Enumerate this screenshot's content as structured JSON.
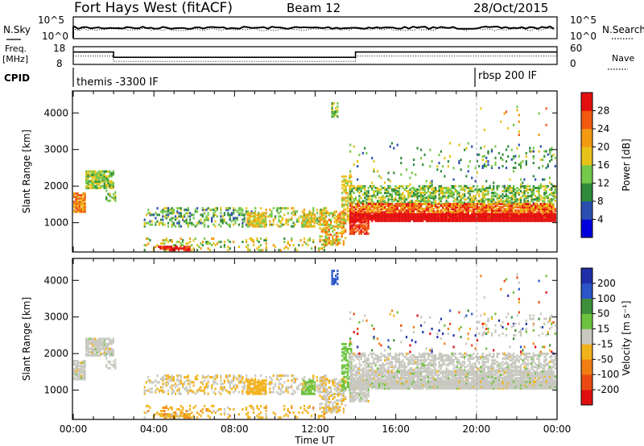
{
  "header": {
    "station": "Fort Hays West (fitACF)",
    "beam": "Beam 12",
    "date": "28/Oct/2015"
  },
  "top_panels": {
    "nsky_label": "N.Sky",
    "nsearch_label": "N.Search",
    "nsky_ticks": [
      "10^5",
      "10^0"
    ],
    "nsearch_ticks": [
      "10^5",
      "10^0"
    ],
    "freq_label": "Freq.",
    "freq_unit": "[MHz]",
    "freq_ticks": [
      "18",
      "8"
    ],
    "nave_label": "Nave",
    "nave_ticks": [
      "60",
      "0"
    ],
    "cpid_label": "CPID",
    "cpid_segments": [
      {
        "start": 0,
        "label": "themis -3300 IF"
      },
      {
        "start": 19.9,
        "label": "rbsp 200 IF"
      }
    ],
    "freq_steps": [
      {
        "t0": 0,
        "t1": 2,
        "mhz": 15
      },
      {
        "t0": 2,
        "t1": 14,
        "mhz": 12
      },
      {
        "t0": 14,
        "t1": 24,
        "mhz": 15
      }
    ]
  },
  "chart_data": [
    {
      "type": "heatmap",
      "title": "Power",
      "ylabel": "Slant Range [km]",
      "xlabel": "Time UT",
      "xlim": [
        0,
        24
      ],
      "ylim": [
        200,
        4600
      ],
      "yticks": [
        1000,
        2000,
        3000,
        4000
      ],
      "colorbar_label": "Power [dB]",
      "colorbar_ticks": [
        "4",
        "8",
        "12",
        "16",
        "20",
        "24",
        "28"
      ],
      "colors": [
        "#0000dd",
        "#2a4fb0",
        "#2f8a3a",
        "#74c84a",
        "#e8c21a",
        "#f39a12",
        "#f15a0f",
        "#e41010"
      ]
    },
    {
      "type": "heatmap",
      "title": "Velocity",
      "ylabel": "Slant Range [km]",
      "xlabel": "Time UT",
      "xlim": [
        0,
        24
      ],
      "ylim": [
        200,
        4600
      ],
      "yticks": [
        1000,
        2000,
        3000,
        4000
      ],
      "xtick_labels": [
        "00:00",
        "04:00",
        "08:00",
        "12:00",
        "16:00",
        "20:00",
        "00:00"
      ],
      "colorbar_label": "Velocity [m s⁻¹]",
      "colorbar_ticks": [
        "200",
        "100",
        "50",
        "15",
        "-15",
        "-50",
        "-100",
        "-200"
      ],
      "colors": [
        "#1f2fa8",
        "#2b55c8",
        "#3e8f3a",
        "#6cc33d",
        "#c8c8c0",
        "#f2b21b",
        "#f07e14",
        "#ea4a12",
        "#e01010"
      ]
    }
  ]
}
